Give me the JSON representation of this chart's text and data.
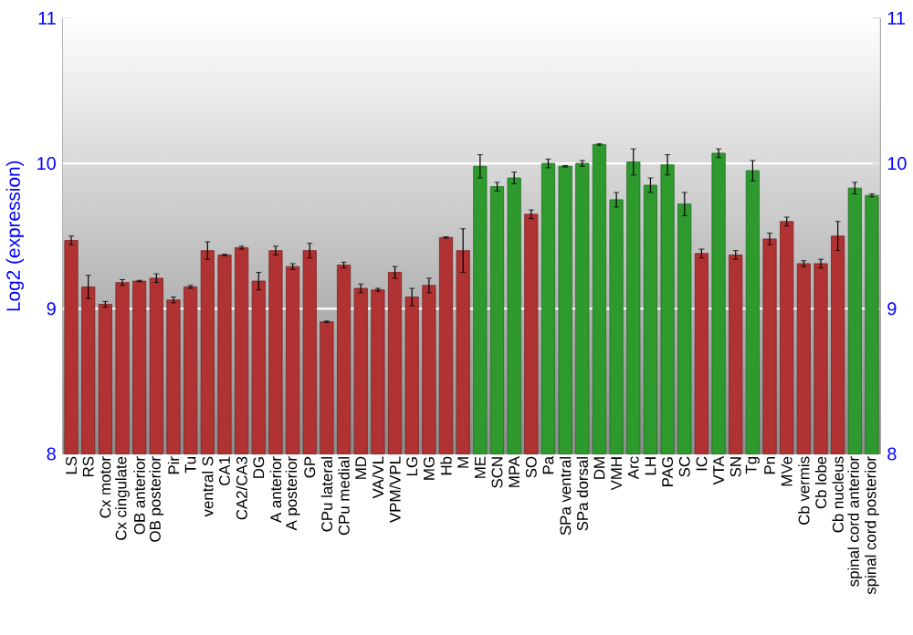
{
  "chart_data": {
    "type": "bar",
    "ylabel": "Log2 (expression)",
    "categories": [
      "LS",
      "RS",
      "Cx motor",
      "Cx cingulate",
      "OB anterior",
      "OB posterior",
      "Pir",
      "Tu",
      "ventral S",
      "CA1",
      "CA2/CA3",
      "DG",
      "A anterior",
      "A posterior",
      "GP",
      "CPu lateral",
      "CPu medial",
      "MD",
      "VA/VL",
      "VPM/VPL",
      "LG",
      "MG",
      "Hb",
      "M",
      "ME",
      "SCN",
      "MPA",
      "SO",
      "Pa",
      "SPa ventral",
      "SPa dorsal",
      "DM",
      "VMH",
      "Arc",
      "LH",
      "PAG",
      "SC",
      "IC",
      "VTA",
      "SN",
      "Tg",
      "Pn",
      "MVe",
      "Cb vermis",
      "Cb lobe",
      "Cb nucleus",
      "spinal cord anterior",
      "spinal cord posterior"
    ],
    "values": [
      9.47,
      9.15,
      9.03,
      9.18,
      9.19,
      9.21,
      9.06,
      9.15,
      9.4,
      9.37,
      9.42,
      9.19,
      9.4,
      9.29,
      9.4,
      8.91,
      9.3,
      9.14,
      9.13,
      9.25,
      9.08,
      9.16,
      9.49,
      9.4,
      9.98,
      9.84,
      9.9,
      9.65,
      10.0,
      9.98,
      10.0,
      10.13,
      9.75,
      10.01,
      9.85,
      9.99,
      9.72,
      9.38,
      10.07,
      9.37,
      9.95,
      9.48,
      9.6,
      9.31,
      9.31,
      9.5,
      9.83,
      9.78
    ],
    "errors": [
      0.03,
      0.08,
      0.02,
      0.02,
      0.005,
      0.03,
      0.02,
      0.01,
      0.06,
      0.005,
      0.01,
      0.06,
      0.03,
      0.02,
      0.05,
      0.005,
      0.02,
      0.03,
      0.01,
      0.04,
      0.06,
      0.05,
      0.005,
      0.15,
      0.08,
      0.03,
      0.04,
      0.03,
      0.03,
      0.005,
      0.02,
      0.005,
      0.05,
      0.09,
      0.05,
      0.07,
      0.08,
      0.03,
      0.03,
      0.03,
      0.07,
      0.04,
      0.03,
      0.02,
      0.03,
      0.1,
      0.04,
      0.01
    ],
    "colors": [
      "#b03232",
      "#b03232",
      "#b03232",
      "#b03232",
      "#b03232",
      "#b03232",
      "#b03232",
      "#b03232",
      "#b03232",
      "#b03232",
      "#b03232",
      "#b03232",
      "#b03232",
      "#b03232",
      "#b03232",
      "#b03232",
      "#b03232",
      "#b03232",
      "#b03232",
      "#b03232",
      "#b03232",
      "#b03232",
      "#b03232",
      "#b03232",
      "#2e9a2e",
      "#2e9a2e",
      "#2e9a2e",
      "#b03232",
      "#2e9a2e",
      "#2e9a2e",
      "#2e9a2e",
      "#2e9a2e",
      "#2e9a2e",
      "#2e9a2e",
      "#2e9a2e",
      "#2e9a2e",
      "#2e9a2e",
      "#b03232",
      "#2e9a2e",
      "#b03232",
      "#2e9a2e",
      "#b03232",
      "#b03232",
      "#b03232",
      "#b03232",
      "#b03232",
      "#2e9a2e",
      "#2e9a2e"
    ],
    "ylim": [
      8,
      11
    ],
    "yticks": [
      8,
      9,
      10,
      11
    ],
    "y2lim": [
      8,
      11
    ],
    "y2ticks": [
      8,
      9,
      10,
      11
    ],
    "grid": "y"
  }
}
